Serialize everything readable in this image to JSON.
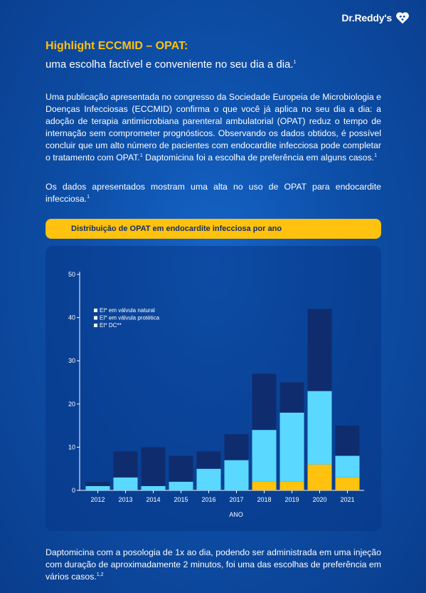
{
  "brand": {
    "name": "Dr.Reddy's"
  },
  "header": {
    "title": "Highlight ECCMID – OPAT:",
    "subtitle": "uma escolha factível e conveniente no seu dia a dia.",
    "subtitle_ref": "1"
  },
  "body": {
    "p1": "Uma publicação apresentada no congresso da Sociedade Europeia de Microbiologia e Doenças Infecciosas (ECCMID) confirma o que você já aplica no seu dia a dia: a adoção de terapia antimicrobiana parenteral ambulatorial (OPAT) reduz o tempo de internação sem comprometer prognósticos. Observando os dados obtidos, é possível concluir que um alto número de pacientes com endocardite infecciosa pode completar o tratamento com OPAT.",
    "p1_ref": "1",
    "p1b": " Daptomicina foi a escolha de preferência em alguns casos.",
    "p1b_ref": "1",
    "p2": "Os dados apresentados mostram uma alta no uso de OPAT para endocardite infecciosa.",
    "p2_ref": "1",
    "p3": "Daptomicina com a posologia de 1x ao dia, podendo ser administrada em uma injeção com duração de aproximadamente 2 minutos, foi uma das escolhas de preferência em vários casos.",
    "p3_ref": "1,2"
  },
  "banner": {
    "label": "Distribuição de OPAT em endocardite infecciosa por ano"
  },
  "chart_data": {
    "type": "bar",
    "stacked": true,
    "categories": [
      "2012",
      "2013",
      "2014",
      "2015",
      "2016",
      "2017",
      "2018",
      "2019",
      "2020",
      "2021"
    ],
    "series": [
      {
        "name": "EI* DC**",
        "color": "#ffc20e",
        "values": [
          0,
          0,
          0,
          0,
          0,
          0,
          2,
          2,
          6,
          3
        ]
      },
      {
        "name": "EI* em válvula protética",
        "color": "#5ad8ff",
        "values": [
          1,
          3,
          1,
          2,
          5,
          7,
          12,
          16,
          17,
          5
        ]
      },
      {
        "name": "EI* em válvula natural",
        "color": "#0f2d6e",
        "values": [
          1,
          6,
          9,
          6,
          4,
          6,
          13,
          7,
          19,
          7
        ]
      }
    ],
    "legend_order": [
      "EI* em válvula natural",
      "EI* em válvula protética",
      "EI* DC**"
    ],
    "ylim": [
      0,
      50
    ],
    "yticks": [
      "0",
      "10",
      "20",
      "30",
      "40",
      "50"
    ],
    "xlabel": "ANO",
    "ylabel": "",
    "grid": false,
    "legend_position": "top-left"
  }
}
